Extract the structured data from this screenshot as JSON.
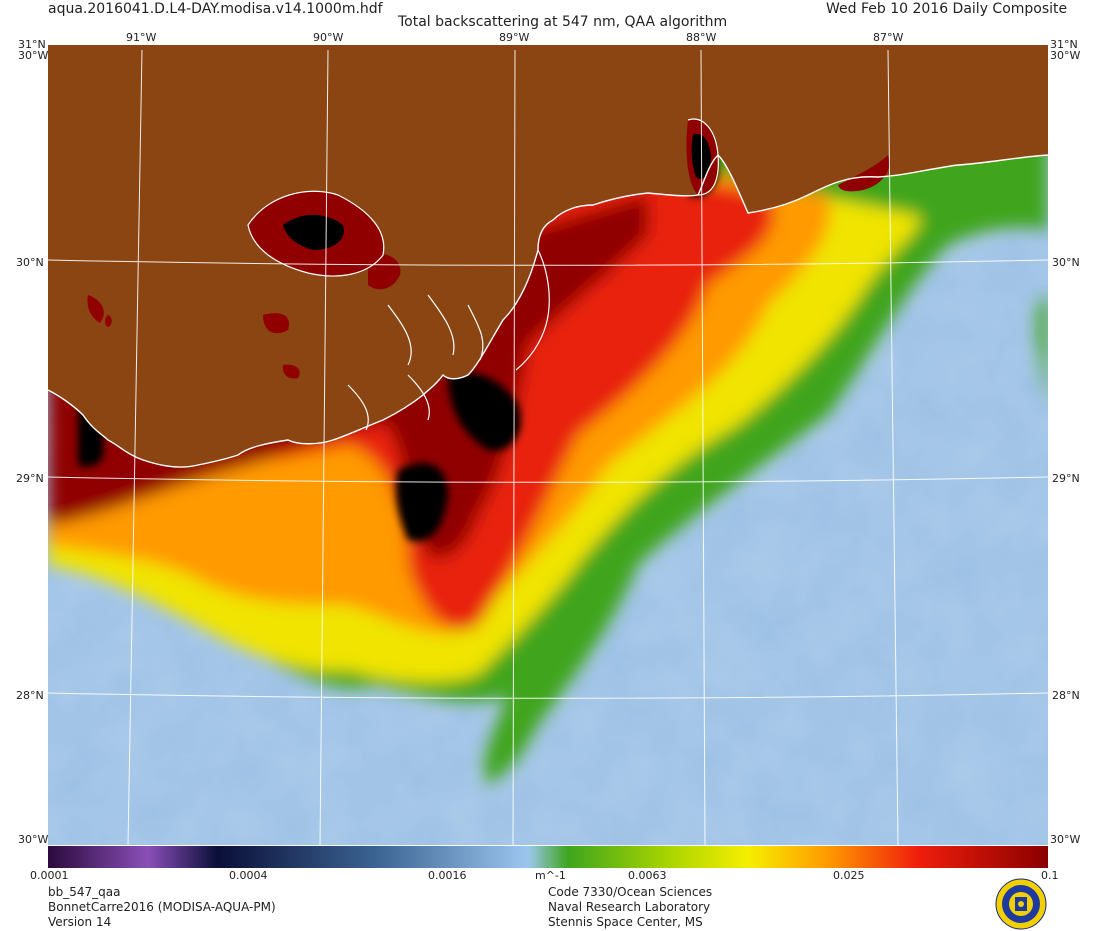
{
  "header": {
    "filename": "aqua.2016041.D.L4-DAY.modisa.v14.1000m.hdf",
    "title": "Total backscattering at 547 nm, QAA algorithm",
    "date": "Wed Feb 10 2016 Daily Composite"
  },
  "map": {
    "lon_labels": [
      "91°W",
      "90°W",
      "89°W",
      "88°W",
      "87°W"
    ],
    "lat_labels": [
      "31°N",
      "30°N",
      "29°N",
      "28°N",
      "30°N"
    ],
    "corner_top": "31°N",
    "corner_bottom": "30°W",
    "colors": {
      "land": "#8b4513",
      "coast": "#ffffff",
      "ocean_low": "#9ec2e6",
      "ocean_mid": "#86b0d6",
      "green": "#3fa51e",
      "yellow": "#f0e400",
      "orange": "#ff9a00",
      "red": "#e8200c",
      "darkred": "#900000",
      "black": "#000000"
    }
  },
  "colorbar": {
    "unit": "m^-1",
    "ticks": [
      "0.0001",
      "0.0004",
      "0.0016",
      "0.0063",
      "0.025",
      "0.1"
    ]
  },
  "footer": {
    "left": [
      "bb_547_qaa",
      "BonnetCarre2016 (MODISA-AQUA-PM)",
      "Version 14"
    ],
    "right": [
      "Code 7330/Ocean Sciences",
      "Naval Research Laboratory",
      "Stennis Space Center, MS"
    ]
  },
  "logo": {
    "icon": "nrl-seal-icon"
  }
}
